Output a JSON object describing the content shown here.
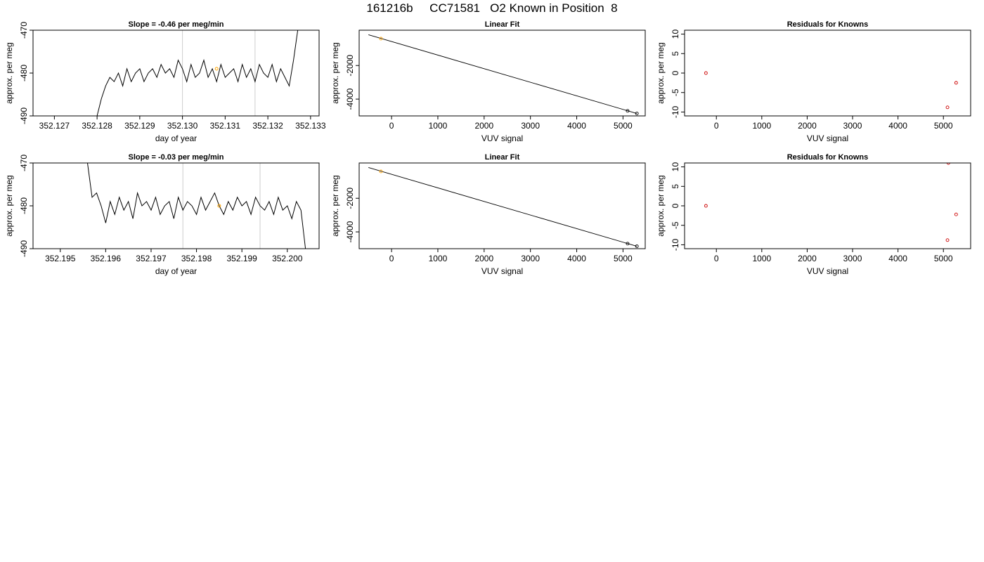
{
  "page": {
    "title": "161216b     CC71581   O2 Known in Position  8"
  },
  "chart_data": [
    {
      "type": "line",
      "title": "Slope =  -0.46  per meg/min",
      "xlabel": "day of year",
      "ylabel": "approx. per meg",
      "xlim": [
        352.1265,
        352.1332
      ],
      "ylim": [
        -490,
        -470
      ],
      "xticks": [
        "352.127",
        "352.128",
        "352.129",
        "352.130",
        "352.131",
        "352.132",
        "352.133"
      ],
      "yticks": [
        "-490",
        "-480",
        "-470"
      ],
      "vlines": [
        352.13,
        352.1317
      ],
      "line_color": "#000000",
      "vline_color": "#cccccc",
      "marker": {
        "x": 352.1308,
        "y": -479,
        "color": "#ffa500"
      },
      "series": [
        {
          "x": [
            352.128,
            352.1281,
            352.1282,
            352.1283,
            352.1284,
            352.1285,
            352.1286,
            352.1287,
            352.1288,
            352.1289,
            352.129,
            352.1291,
            352.1292,
            352.1293,
            352.1294,
            352.1295,
            352.1296,
            352.1297,
            352.1298,
            352.1299,
            352.13,
            352.1301,
            352.1302,
            352.1303,
            352.1304,
            352.1305,
            352.1306,
            352.1307,
            352.1308,
            352.1309,
            352.131,
            352.1311,
            352.1312,
            352.1313,
            352.1314,
            352.1315,
            352.1316,
            352.1317,
            352.1318,
            352.1319,
            352.132,
            352.1321,
            352.1322,
            352.1323,
            352.1324,
            352.1325,
            352.1326,
            352.1327
          ],
          "y": [
            -490,
            -486,
            -483,
            -481,
            -482,
            -480,
            -483,
            -479,
            -482,
            -480,
            -479,
            -482,
            -480,
            -479,
            -481,
            -478,
            -480,
            -479,
            -481,
            -477,
            -479,
            -482,
            -478,
            -481,
            -480,
            -477,
            -481,
            -479,
            -482,
            -478,
            -481,
            -480,
            -479,
            -482,
            -478,
            -481,
            -479,
            -482,
            -478,
            -480,
            -481,
            -478,
            -482,
            -479,
            -481,
            -483,
            -477,
            -470
          ]
        }
      ]
    },
    {
      "type": "scatter",
      "title": "Linear Fit",
      "xlabel": "VUV signal",
      "ylabel": "approx. per meg",
      "xlim": [
        -700,
        5480
      ],
      "ylim": [
        -5000,
        100
      ],
      "xticks": [
        0,
        1000,
        2000,
        3000,
        4000,
        5000
      ],
      "yticks": [
        -4000,
        -2000
      ],
      "fit_line": {
        "x": [
          -500,
          5300
        ],
        "y": [
          -170,
          -4855
        ],
        "color": "#000000"
      },
      "points": [
        {
          "x": -230,
          "y": -400,
          "color": "#ffa500"
        },
        {
          "x": 5100,
          "y": -4700,
          "color": "#000000"
        },
        {
          "x": 5300,
          "y": -4855,
          "color": "#000000"
        }
      ]
    },
    {
      "type": "scatter",
      "title": "Residuals for Knowns",
      "xlabel": "VUV signal",
      "ylabel": "approx. per meg",
      "xlim": [
        -700,
        5600
      ],
      "ylim": [
        -11,
        11
      ],
      "xticks": [
        0,
        1000,
        2000,
        3000,
        4000,
        5000
      ],
      "yticks": [
        -10,
        -5,
        0,
        5,
        10
      ],
      "point_color": "#cc0000",
      "points": [
        {
          "x": -230,
          "y": 0
        },
        {
          "x": 5090,
          "y": -8.8
        },
        {
          "x": 5280,
          "y": -2.5
        }
      ]
    },
    {
      "type": "line",
      "title": "Slope =  -0.03  per meg/min",
      "xlabel": "day of year",
      "ylabel": "approx. per meg",
      "xlim": [
        352.1944,
        352.2007
      ],
      "ylim": [
        -490,
        -470
      ],
      "xticks": [
        "352.195",
        "352.196",
        "352.197",
        "352.198",
        "352.199",
        "352.200"
      ],
      "yticks": [
        "-490",
        "-480",
        "-470"
      ],
      "vlines": [
        352.1977,
        352.1994
      ],
      "line_color": "#000000",
      "vline_color": "#cccccc",
      "marker": {
        "x": 352.1985,
        "y": -480,
        "color": "#ffa500"
      },
      "series": [
        {
          "x": [
            352.1956,
            352.1957,
            352.1958,
            352.1959,
            352.196,
            352.1961,
            352.1962,
            352.1963,
            352.1964,
            352.1965,
            352.1966,
            352.1967,
            352.1968,
            352.1969,
            352.197,
            352.1971,
            352.1972,
            352.1973,
            352.1974,
            352.1975,
            352.1976,
            352.1977,
            352.1978,
            352.1979,
            352.198,
            352.1981,
            352.1982,
            352.1983,
            352.1984,
            352.1985,
            352.1986,
            352.1987,
            352.1988,
            352.1989,
            352.199,
            352.1991,
            352.1992,
            352.1993,
            352.1994,
            352.1995,
            352.1996,
            352.1997,
            352.1998,
            352.1999,
            352.2,
            352.2001,
            352.2002,
            352.2003,
            352.2004
          ],
          "y": [
            -470,
            -478,
            -477,
            -480,
            -484,
            -479,
            -482,
            -478,
            -481,
            -479,
            -483,
            -477,
            -480,
            -479,
            -481,
            -478,
            -482,
            -480,
            -479,
            -483,
            -478,
            -481,
            -479,
            -480,
            -482,
            -478,
            -481,
            -479,
            -477,
            -480,
            -482,
            -479,
            -481,
            -478,
            -480,
            -479,
            -482,
            -478,
            -480,
            -481,
            -479,
            -482,
            -478,
            -481,
            -480,
            -483,
            -479,
            -481,
            -490
          ]
        }
      ]
    },
    {
      "type": "scatter",
      "title": "Linear Fit",
      "xlabel": "VUV signal",
      "ylabel": "approx. per meg",
      "xlim": [
        -700,
        5480
      ],
      "ylim": [
        -5000,
        100
      ],
      "xticks": [
        0,
        1000,
        2000,
        3000,
        4000,
        5000
      ],
      "yticks": [
        -4000,
        -2000
      ],
      "fit_line": {
        "x": [
          -500,
          5300
        ],
        "y": [
          -170,
          -4855
        ],
        "color": "#000000"
      },
      "points": [
        {
          "x": -230,
          "y": -400,
          "color": "#ffa500"
        },
        {
          "x": 5100,
          "y": -4700,
          "color": "#000000"
        },
        {
          "x": 5300,
          "y": -4855,
          "color": "#000000"
        }
      ]
    },
    {
      "type": "scatter",
      "title": "Residuals for Knowns",
      "xlabel": "VUV signal",
      "ylabel": "approx. per meg",
      "xlim": [
        -700,
        5600
      ],
      "ylim": [
        -11,
        11
      ],
      "xticks": [
        0,
        1000,
        2000,
        3000,
        4000,
        5000
      ],
      "yticks": [
        -10,
        -5,
        0,
        5,
        10
      ],
      "point_color": "#cc0000",
      "points": [
        {
          "x": -230,
          "y": 0
        },
        {
          "x": 5110,
          "y": 11
        },
        {
          "x": 5090,
          "y": -8.8
        },
        {
          "x": 5280,
          "y": -2.2
        }
      ]
    }
  ]
}
